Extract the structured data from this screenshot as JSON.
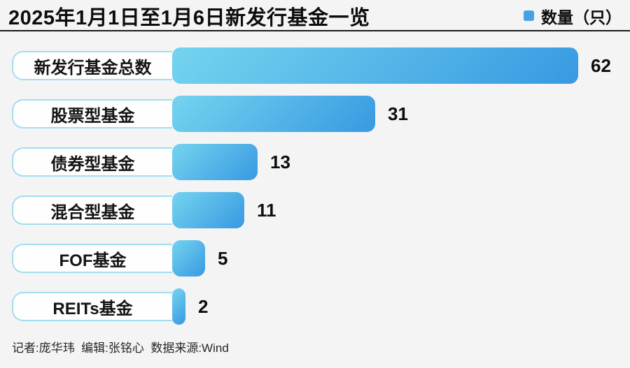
{
  "header": {
    "title": "2025年1月1日至1月6日新发行基金一览",
    "legend": {
      "label": "数量（只）",
      "swatch_color": "#45a3e5"
    }
  },
  "chart_data": {
    "type": "bar",
    "orientation": "horizontal",
    "title": "2025年1月1日至1月6日新发行基金一览",
    "series_name": "数量（只）",
    "categories": [
      "新发行基金总数",
      "股票型基金",
      "债券型基金",
      "混合型基金",
      "FOF基金",
      "REITs基金"
    ],
    "values": [
      62,
      31,
      13,
      11,
      5,
      2
    ],
    "xlim": [
      0,
      62
    ],
    "grid": false,
    "legend_position": "top-right",
    "value_labels_shown": true,
    "bar_gradient": [
      "#74d4ef",
      "#3899e2"
    ]
  },
  "footer": {
    "credits": "记者:庞华玮  编辑:张铭心  数据来源:Wind"
  }
}
